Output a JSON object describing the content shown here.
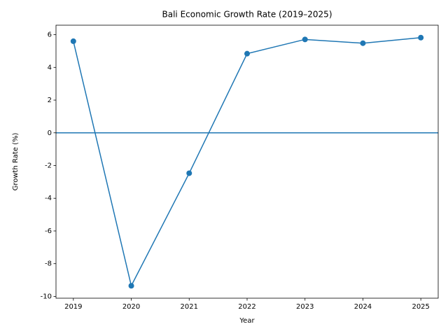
{
  "chart_data": {
    "type": "line",
    "title": "Bali Economic Growth Rate (2019–2025)",
    "x_label": "Year",
    "y_label": "Growth Rate (%)",
    "x": [
      2019,
      2020,
      2021,
      2022,
      2023,
      2024,
      2025
    ],
    "series": [
      {
        "color": "#1f77b4",
        "values": [
          5.6,
          -9.35,
          -2.47,
          4.84,
          5.71,
          5.48,
          5.82
        ]
      }
    ],
    "hline": 0,
    "xlim": [
      2018.7,
      2025.3
    ],
    "xticks": [
      2019,
      2020,
      2021,
      2022,
      2023,
      2024,
      2025
    ],
    "ylim": [
      -10.11,
      6.58
    ],
    "yticks": [
      -10,
      -8,
      -6,
      -4,
      -2,
      0,
      2,
      4,
      6
    ],
    "grid": false
  }
}
